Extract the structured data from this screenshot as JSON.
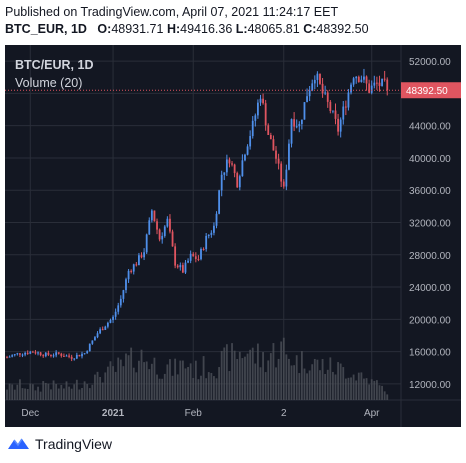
{
  "header": {
    "published": "Published on TradingView.com, April 07, 2021 11:24:17 EET",
    "symbol_interval": "BTC_EUR, 1D",
    "open_label": "O:",
    "open_value": "48931.71",
    "high_label": "H:",
    "high_value": "49416.36",
    "low_label": "L:",
    "low_value": "48065.81",
    "close_label": "C:",
    "close_value": "48392.50"
  },
  "legend": {
    "symbol": "BTC/EUR, 1D",
    "volume": "Volume (20)"
  },
  "colors": {
    "background": "#131722",
    "grid": "#2a2e39",
    "up": "#4f8fea",
    "down": "#e05560",
    "volume": "#4a4d56",
    "last_price_line": "#e05560",
    "text": "#b2b5be",
    "price_tag": "#e05560"
  },
  "footer": {
    "brand": "TradingView",
    "logo_icon": "tradingview-logo-icon"
  },
  "chart_data": {
    "type": "candlestick",
    "y_axis": {
      "ticks": [
        12000,
        16000,
        20000,
        24000,
        28000,
        32000,
        36000,
        40000,
        44000,
        48000,
        52000
      ],
      "tick_labels": [
        "12000.00",
        "16000.00",
        "20000.00",
        "24000.00",
        "28000.00",
        "32000.00",
        "36000.00",
        "40000.00",
        "44000.00",
        "48000.00",
        "52000.00"
      ],
      "range": [
        10000,
        54000
      ]
    },
    "x_axis": {
      "labels": [
        "Dec",
        "2021",
        "Feb",
        "2",
        "Apr"
      ],
      "label_days": [
        9,
        41,
        72,
        107,
        141
      ],
      "bold_labels": [
        "2021"
      ],
      "range_days": [
        0,
        150
      ]
    },
    "last_price": {
      "value": 48392.5,
      "label": "48392.50"
    },
    "series": [
      {
        "name": "BTC/EUR",
        "ohlc_close_anchor_days": [
          0,
          5,
          10,
          15,
          20,
          25,
          30,
          35,
          38,
          41,
          44,
          47,
          50,
          53,
          56,
          59,
          62,
          65,
          68,
          71,
          74,
          77,
          80,
          83,
          86,
          89,
          92,
          95,
          98,
          101,
          104,
          107,
          110,
          113,
          116,
          119,
          122,
          125,
          128,
          131,
          134,
          137,
          140,
          143,
          146,
          147
        ],
        "ohlc_close_anchor_values": [
          15300,
          15800,
          16000,
          15600,
          15700,
          15300,
          15800,
          18300,
          19300,
          20200,
          22500,
          26000,
          27000,
          28500,
          33500,
          30000,
          32200,
          27000,
          26000,
          27800,
          27500,
          30000,
          31500,
          38000,
          40000,
          37000,
          41000,
          44000,
          48000,
          43000,
          40000,
          36000,
          45000,
          44000,
          48000,
          50500,
          48000,
          46000,
          43500,
          47000,
          50500,
          50000,
          48500,
          49200,
          48900,
          48392.5
        ]
      }
    ],
    "volume": {
      "name": "Volume (20)",
      "relative_levels": [
        0.15,
        0.18,
        0.16,
        0.14,
        0.2,
        0.17,
        0.15,
        0.16,
        0.19,
        0.22,
        0.25,
        0.3,
        0.35,
        0.38,
        0.45,
        0.5,
        0.48,
        0.42,
        0.38,
        0.36,
        0.4,
        0.42,
        0.35,
        0.38,
        0.4,
        0.45,
        0.5,
        0.55,
        0.58,
        0.52,
        0.48,
        0.55,
        0.6,
        0.5,
        0.45,
        0.48,
        0.42,
        0.4,
        0.38,
        0.36,
        0.35,
        0.3,
        0.25,
        0.2,
        0.15,
        0.05
      ]
    }
  }
}
